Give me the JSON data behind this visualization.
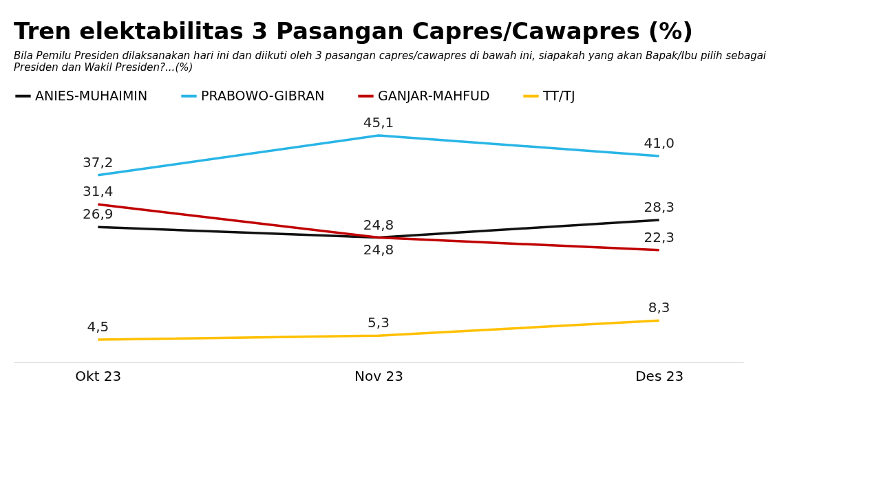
{
  "chart_data": {
    "type": "line",
    "title": "Tren elektabilitas 3 Pasangan Capres/Cawapres (%)",
    "subtitle": "Bila Pemilu Presiden dilaksanakan hari ini dan diikuti oleh 3 pasangan capres/cawapres di bawah ini, siapakah yang akan Bapak/Ibu pilih sebagai Presiden dan Wakil Presiden?...(%)",
    "categories": [
      "Okt 23",
      "Nov 23",
      "Des 23"
    ],
    "series": [
      {
        "name": "ANIES-MUHAIMIN",
        "color": "#111111",
        "values": [
          26.9,
          24.8,
          28.3
        ],
        "value_labels": [
          "26,9",
          "24,8",
          "28,3"
        ]
      },
      {
        "name": "PRABOWO-GIBRAN",
        "color": "#29b5e6",
        "values": [
          37.2,
          45.1,
          41.0
        ],
        "value_labels": [
          "37,2",
          "45,1",
          "41,0"
        ]
      },
      {
        "name": "GANJAR-MAHFUD",
        "color": "#c00000",
        "values": [
          31.4,
          24.8,
          22.3
        ],
        "value_labels": [
          "31,4",
          "24,8",
          "22,3"
        ]
      },
      {
        "name": "TT/TJ",
        "color": "#ffc000",
        "values": [
          4.5,
          5.3,
          8.3
        ],
        "value_labels": [
          "4,5",
          "5,3",
          "8,3"
        ]
      }
    ],
    "legend": "top",
    "grid": false,
    "marker": "none",
    "line_style": "solid"
  }
}
